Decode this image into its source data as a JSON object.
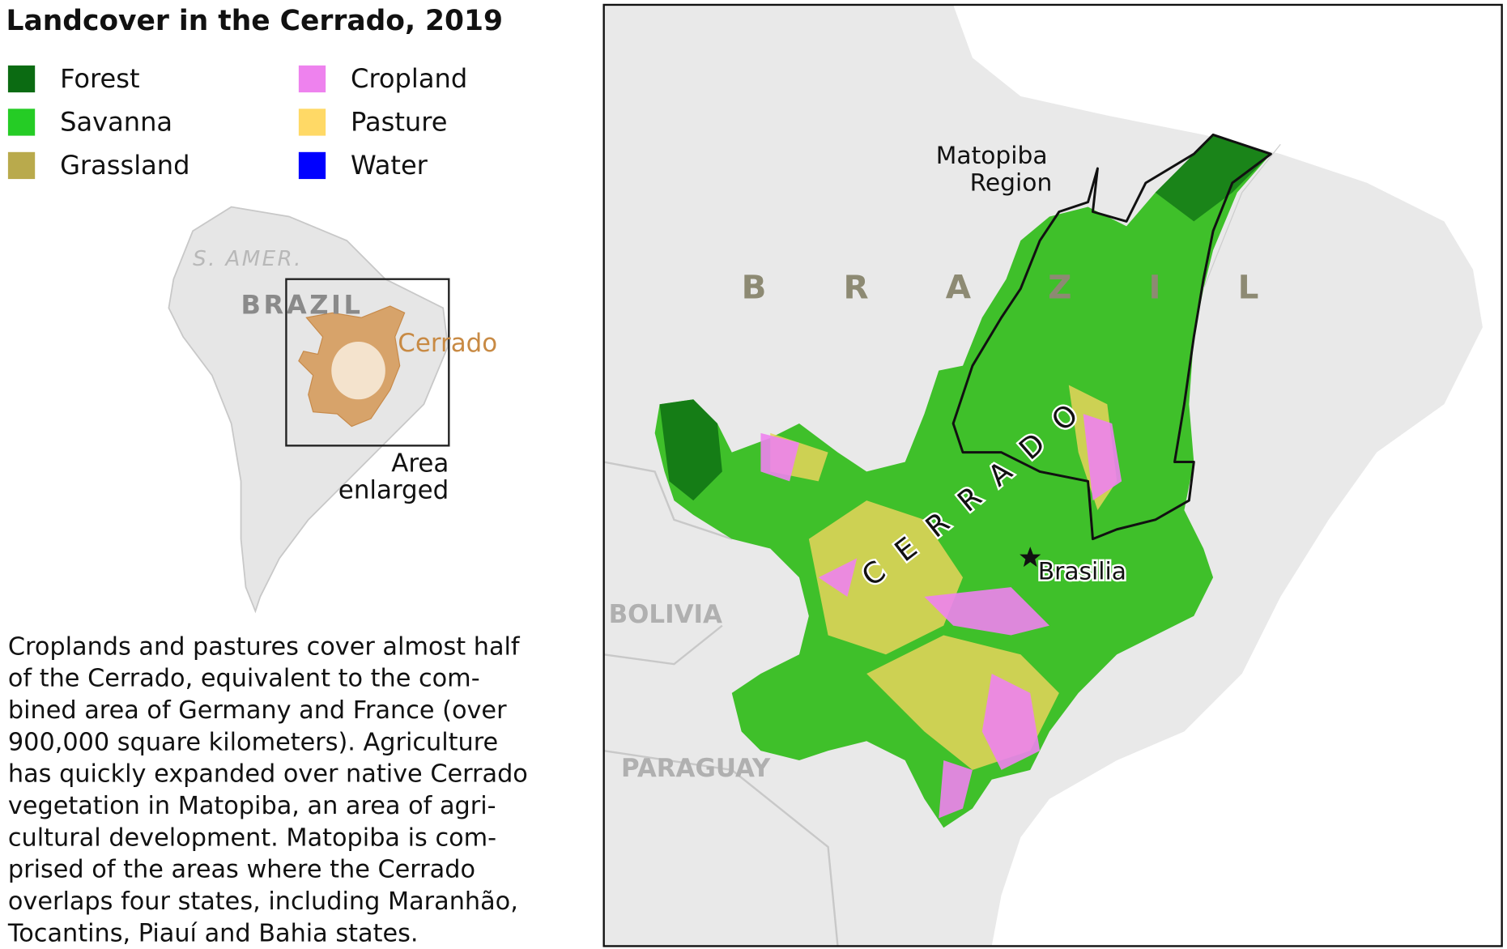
{
  "title": "Landcover in the Cerrado, 2019",
  "legend": [
    {
      "label": "Forest",
      "color": "#0b6b12"
    },
    {
      "label": "Savanna",
      "color": "#25cc25"
    },
    {
      "label": "Grassland",
      "color": "#b9aa4c"
    },
    {
      "label": "Cropland",
      "color": "#ee82ee"
    },
    {
      "label": "Pasture",
      "color": "#ffd966"
    },
    {
      "label": "Water",
      "color": "#0000ff"
    }
  ],
  "inset": {
    "continent": "S. AMER.",
    "country": "BRAZIL",
    "region": "Cerrado",
    "box_label": [
      "Area",
      "enlarged"
    ]
  },
  "map": {
    "region_label": [
      "Matopiba",
      "Region"
    ],
    "country": "BRAZIL",
    "biome": "CERRADO",
    "capital": "Brasilia",
    "neighbors": [
      "BOLIVIA",
      "PARAGUAY"
    ]
  },
  "description": [
    "Croplands and pastures cover almost half",
    "of the Cerrado, equivalent to the com-",
    "bined area of Germany and France (over",
    "900,000 square kilometers). Agriculture",
    "has quickly expanded over native Cerrado",
    "vegetation in Matopiba, an area of agri-",
    "cultural development. Matopiba is com-",
    "prised of the areas where the Cerrado",
    "overlaps four states, including Maranhão,",
    "Tocantins, Piauí and Bahia states."
  ]
}
